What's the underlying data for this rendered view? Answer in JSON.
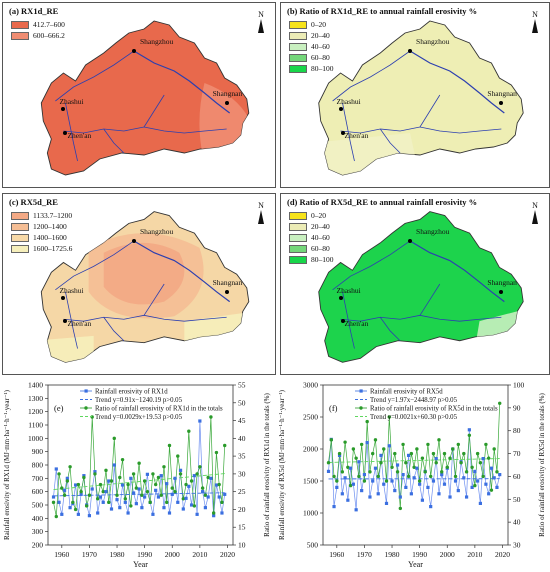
{
  "panels": [
    {
      "id": "a",
      "title": "(a)   RX1d_RE",
      "fill": "#e8694c",
      "legend": [
        {
          "label": "412.7–600",
          "color": "#e8694c"
        },
        {
          "label": "600–666.2",
          "color": "#f08d72"
        }
      ]
    },
    {
      "id": "b",
      "title": "(b)   Ratio of RX1d_RE to annual rainfall erosivity %",
      "fill": "#eeeeb4",
      "legend": [
        {
          "label": "0–20",
          "color": "#f7e31a"
        },
        {
          "label": "20–40",
          "color": "#ececb6"
        },
        {
          "label": "40–60",
          "color": "#c9f0c0"
        },
        {
          "label": "60–80",
          "color": "#74d77a"
        },
        {
          "label": "80–100",
          "color": "#18d64a"
        }
      ]
    },
    {
      "id": "c",
      "title": "(c)   RX5d_RE",
      "fill": "#f5d7a6",
      "legend": [
        {
          "label": "1133.7–1200",
          "color": "#f3a985"
        },
        {
          "label": "1200–1400",
          "color": "#f5be95"
        },
        {
          "label": "1400–1600",
          "color": "#f7d9a7"
        },
        {
          "label": "1600–1725.6",
          "color": "#f6efbb"
        }
      ]
    },
    {
      "id": "d",
      "title": "(d)   Ratio of RX5d_RE to annual rainfall erosivity %",
      "fill": "#1dd34c",
      "legend": [
        {
          "label": "0–20",
          "color": "#f7e31a"
        },
        {
          "label": "20–40",
          "color": "#ececb6"
        },
        {
          "label": "40–60",
          "color": "#c9f0c0"
        },
        {
          "label": "60–80",
          "color": "#74d77a"
        },
        {
          "label": "80–100",
          "color": "#18d64a"
        }
      ]
    }
  ],
  "cities": {
    "zhashui": "Zhashui",
    "zhenan": "Zhen'an",
    "shangzhou": "Shangzhou",
    "shangnan": "Shangnan"
  },
  "north": "N",
  "chart_data": [
    {
      "type": "line",
      "panel": "(e)",
      "xlabel": "Year",
      "ylabel": "Rainfall erosivity of RX1d (MJ·mm·ha⁻¹·h⁻¹·year⁻¹)",
      "y2label": "Ratio of rainfall erosivity of RX1d in the totals (%)",
      "xlim": [
        1955,
        2022
      ],
      "ylim": [
        200,
        1400
      ],
      "y2lim": [
        10,
        55
      ],
      "xticks": [
        1960,
        1970,
        1980,
        1990,
        2000,
        2010,
        2020
      ],
      "yticks": [
        200,
        300,
        400,
        500,
        600,
        700,
        800,
        900,
        1000,
        1100,
        1200,
        1300,
        1400
      ],
      "y2ticks": [
        10,
        15,
        20,
        25,
        30,
        35,
        40,
        45,
        50,
        55
      ],
      "legend": [
        {
          "label": "Rainfall erosivity of RX1d",
          "color": "#3b6fe0"
        },
        {
          "label": "Trend    y=0.91x−1240.19  p>0.05",
          "color": "#3b6fe0"
        },
        {
          "label": "Ratio of rainfall erosivity of RX1d in the totals",
          "color": "#2a9a2a"
        },
        {
          "label": "Trend    y=0.0029x+19.53  p>0.05",
          "color": "#5fd75f"
        }
      ],
      "x": [
        1957,
        1958,
        1959,
        1960,
        1961,
        1962,
        1963,
        1964,
        1965,
        1966,
        1967,
        1968,
        1969,
        1970,
        1971,
        1972,
        1973,
        1974,
        1975,
        1976,
        1977,
        1978,
        1979,
        1980,
        1981,
        1982,
        1983,
        1984,
        1985,
        1986,
        1987,
        1988,
        1989,
        1990,
        1991,
        1992,
        1993,
        1994,
        1995,
        1996,
        1997,
        1998,
        1999,
        2000,
        2001,
        2002,
        2003,
        2004,
        2005,
        2006,
        2007,
        2008,
        2009,
        2010,
        2011,
        2012,
        2013,
        2014,
        2015,
        2016,
        2017,
        2018,
        2019
      ],
      "series": [
        {
          "name": "Rainfall erosivity of RX1d",
          "values": [
            560,
            770,
            520,
            430,
            610,
            700,
            480,
            510,
            650,
            430,
            580,
            720,
            500,
            420,
            620,
            750,
            440,
            560,
            520,
            600,
            680,
            470,
            800,
            540,
            480,
            650,
            520,
            440,
            700,
            590,
            510,
            620,
            480,
            560,
            730,
            520,
            430,
            610,
            560,
            720,
            480,
            660,
            440,
            580,
            700,
            520,
            760,
            470,
            550,
            640,
            500,
            720,
            430,
            1130,
            600,
            480,
            560,
            700,
            420,
            650,
            560,
            440,
            580
          ]
        },
        {
          "name": "Ratio of rainfall erosivity of RX1d in the totals",
          "values": [
            22,
            18,
            30,
            26,
            24,
            28,
            32,
            22,
            20,
            27,
            25,
            29,
            21,
            24,
            46,
            30,
            23,
            27,
            25,
            31,
            22,
            28,
            40,
            24,
            29,
            34,
            23,
            27,
            21,
            30,
            26,
            33,
            24,
            28,
            25,
            22,
            30,
            27,
            29,
            24,
            32,
            22,
            38,
            26,
            25,
            35,
            30,
            23,
            27,
            42,
            28,
            21,
            30,
            32,
            26,
            24,
            29,
            46,
            19,
            36,
            27,
            22,
            38
          ]
        }
      ]
    },
    {
      "type": "line",
      "panel": "(f)",
      "xlabel": "Year",
      "ylabel": "Rainfall erosivity of RX5d (MJ·mm·ha⁻¹·h⁻¹·year⁻¹)",
      "y2label": "Ratio of rainfall erosivity of RX5d in the totals (%)",
      "xlim": [
        1955,
        2022
      ],
      "ylim": [
        500,
        3000
      ],
      "y2lim": [
        30,
        100
      ],
      "xticks": [
        1960,
        1970,
        1980,
        1990,
        2000,
        2010,
        2020
      ],
      "yticks": [
        500,
        1000,
        1500,
        2000,
        2500,
        3000
      ],
      "y2ticks": [
        30,
        40,
        50,
        60,
        70,
        80,
        90,
        100
      ],
      "legend": [
        {
          "label": "Rainfall erosivity of RX5d",
          "color": "#3b6fe0"
        },
        {
          "label": "Trend    y=1.97x−2448.97  p>0.05",
          "color": "#3b6fe0"
        },
        {
          "label": "Ratio of rainfall erosivity of RX5d in the totals",
          "color": "#2a9a2a"
        },
        {
          "label": "Trend    y=0.0021x+60.30  p>0.05",
          "color": "#5fd75f"
        }
      ],
      "x": [
        1957,
        1958,
        1959,
        1960,
        1961,
        1962,
        1963,
        1964,
        1965,
        1966,
        1967,
        1968,
        1969,
        1970,
        1971,
        1972,
        1973,
        1974,
        1975,
        1976,
        1977,
        1978,
        1979,
        1980,
        1981,
        1982,
        1983,
        1984,
        1985,
        1986,
        1987,
        1988,
        1989,
        1990,
        1991,
        1992,
        1993,
        1994,
        1995,
        1996,
        1997,
        1998,
        1999,
        2000,
        2001,
        2002,
        2003,
        2004,
        2005,
        2006,
        2007,
        2008,
        2009,
        2010,
        2011,
        2012,
        2013,
        2014,
        2015,
        2016,
        2017,
        2018,
        2019
      ],
      "series": [
        {
          "name": "Rainfall erosivity of RX5d",
          "values": [
            1650,
            2150,
            1100,
            1400,
            1900,
            1300,
            1550,
            1200,
            1700,
            1450,
            1050,
            1800,
            1350,
            1600,
            2100,
            1250,
            1500,
            1700,
            1300,
            1900,
            1450,
            1150,
            2050,
            1500,
            1350,
            1750,
            1250,
            1600,
            1400,
            1900,
            1300,
            1550,
            1700,
            1450,
            1200,
            1650,
            1400,
            1100,
            1500,
            1850,
            1300,
            1600,
            1450,
            1700,
            1250,
            2000,
            1500,
            1350,
            1800,
            1550,
            1250,
            2300,
            1400,
            1650,
            1500,
            1150,
            1850,
            1450,
            1300,
            1700,
            1550,
            1400,
            1600
          ]
        },
        {
          "name": "Ratio of rainfall erosivity of RX5d in the totals",
          "values": [
            66,
            76,
            60,
            58,
            70,
            62,
            75,
            64,
            56,
            72,
            68,
            60,
            74,
            58,
            84,
            62,
            70,
            76,
            60,
            66,
            72,
            58,
            86,
            64,
            70,
            62,
            46,
            74,
            66,
            60,
            70,
            64,
            72,
            58,
            68,
            62,
            74,
            60,
            70,
            66,
            76,
            62,
            70,
            64,
            68,
            72,
            60,
            74,
            66,
            70,
            62,
            78,
            64,
            56,
            70,
            66,
            60,
            74,
            68,
            54,
            72,
            62,
            92
          ]
        }
      ]
    }
  ]
}
